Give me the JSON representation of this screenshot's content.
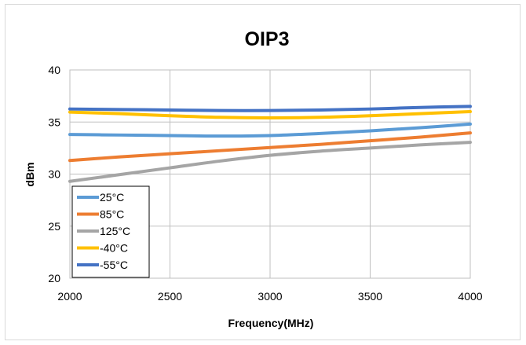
{
  "chart_data": {
    "type": "line",
    "title": "OIP3",
    "xlabel": "Frequency(MHz)",
    "ylabel": "dBm",
    "xlim": [
      2000,
      4000
    ],
    "ylim": [
      20,
      40
    ],
    "x_ticks": [
      2000,
      2500,
      3000,
      3500,
      4000
    ],
    "y_ticks": [
      20,
      25,
      30,
      35,
      40
    ],
    "grid": true,
    "legend_position": "bottom-left",
    "x": [
      2000,
      2250,
      2500,
      2750,
      3000,
      3250,
      3500,
      3750,
      4000
    ],
    "series": [
      {
        "name": "25°C",
        "color": "#5b9bd5",
        "values": [
          33.8,
          33.75,
          33.7,
          33.65,
          33.7,
          33.9,
          34.15,
          34.45,
          34.8
        ]
      },
      {
        "name": "85°C",
        "color": "#ed7d31",
        "values": [
          31.3,
          31.65,
          31.95,
          32.25,
          32.55,
          32.85,
          33.2,
          33.55,
          33.95
        ]
      },
      {
        "name": "125°C",
        "color": "#a5a5a5",
        "values": [
          29.3,
          29.95,
          30.6,
          31.25,
          31.8,
          32.2,
          32.5,
          32.8,
          33.05
        ]
      },
      {
        "name": "-40°C",
        "color": "#ffc000",
        "values": [
          35.95,
          35.8,
          35.6,
          35.45,
          35.4,
          35.45,
          35.6,
          35.8,
          36.0
        ]
      },
      {
        "name": "-55°C",
        "color": "#4472c4",
        "values": [
          36.25,
          36.2,
          36.15,
          36.1,
          36.1,
          36.15,
          36.25,
          36.4,
          36.5
        ]
      }
    ]
  }
}
